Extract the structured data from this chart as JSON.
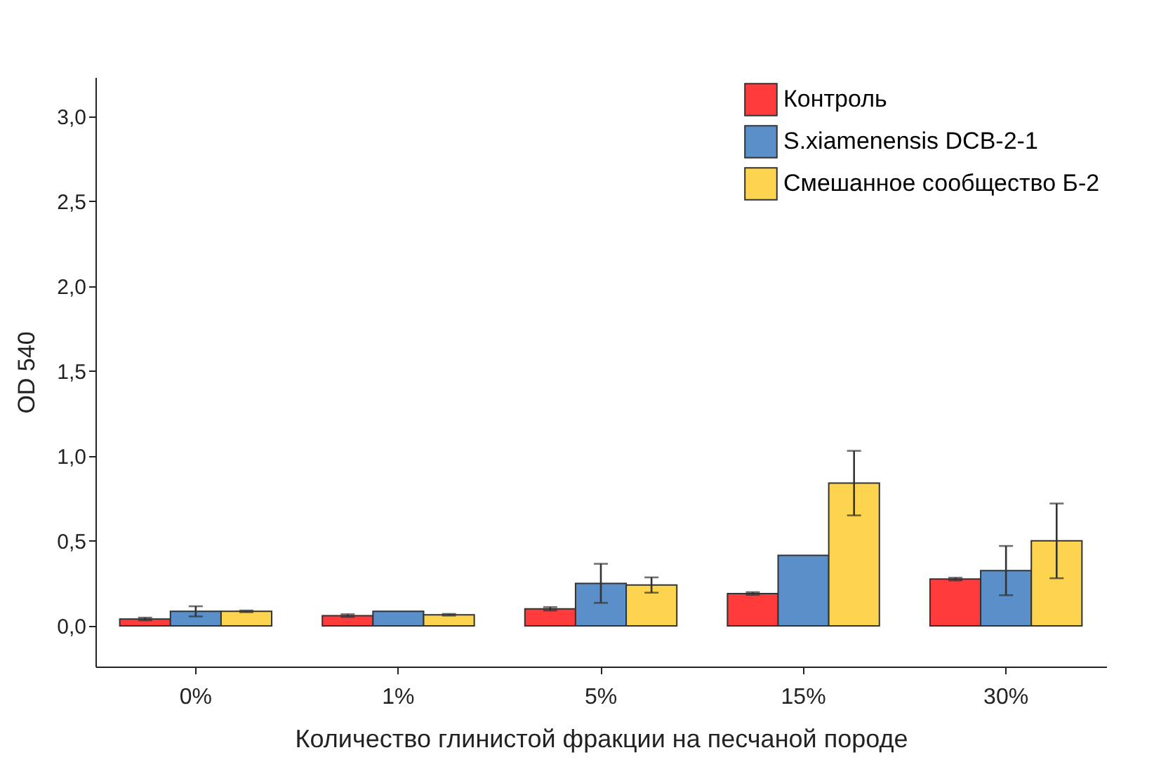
{
  "chart_data": {
    "type": "bar",
    "xlabel": "Количество глинистой фракции на песчаной породе",
    "ylabel": "OD 540",
    "categories": [
      "0%",
      "1%",
      "5%",
      "15%",
      "30%"
    ],
    "series": [
      {
        "name": "Контроль",
        "color": "#ff3b3b",
        "values": [
          0.04,
          0.06,
          0.1,
          0.19,
          0.275
        ],
        "errors": [
          0.008,
          0.008,
          0.01,
          0.008,
          0.008
        ]
      },
      {
        "name": "S.xiamenensis DCB-2-1",
        "color": "#5b8fc9",
        "values": [
          0.085,
          0.085,
          0.25,
          0.415,
          0.325
        ],
        "errors": [
          0.03,
          null,
          0.115,
          null,
          0.145
        ]
      },
      {
        "name": "Смешанное сообщество Б-2",
        "color": "#fdd44f",
        "values": [
          0.085,
          0.065,
          0.24,
          0.84,
          0.5
        ],
        "errors": [
          0.005,
          0.005,
          0.045,
          0.19,
          0.22
        ]
      }
    ],
    "ylim": [
      -0.24,
      3.23
    ],
    "yticks": [
      {
        "value": 0,
        "label": "0,0"
      },
      {
        "value": 0.5,
        "label": "0,5"
      },
      {
        "value": 1,
        "label": "1,0"
      },
      {
        "value": 1.5,
        "label": "1,5"
      },
      {
        "value": 2,
        "label": "2,0"
      },
      {
        "value": 2.5,
        "label": "2,5"
      },
      {
        "value": 3,
        "label": "3,0"
      }
    ],
    "legend": "top right",
    "grid": false
  }
}
